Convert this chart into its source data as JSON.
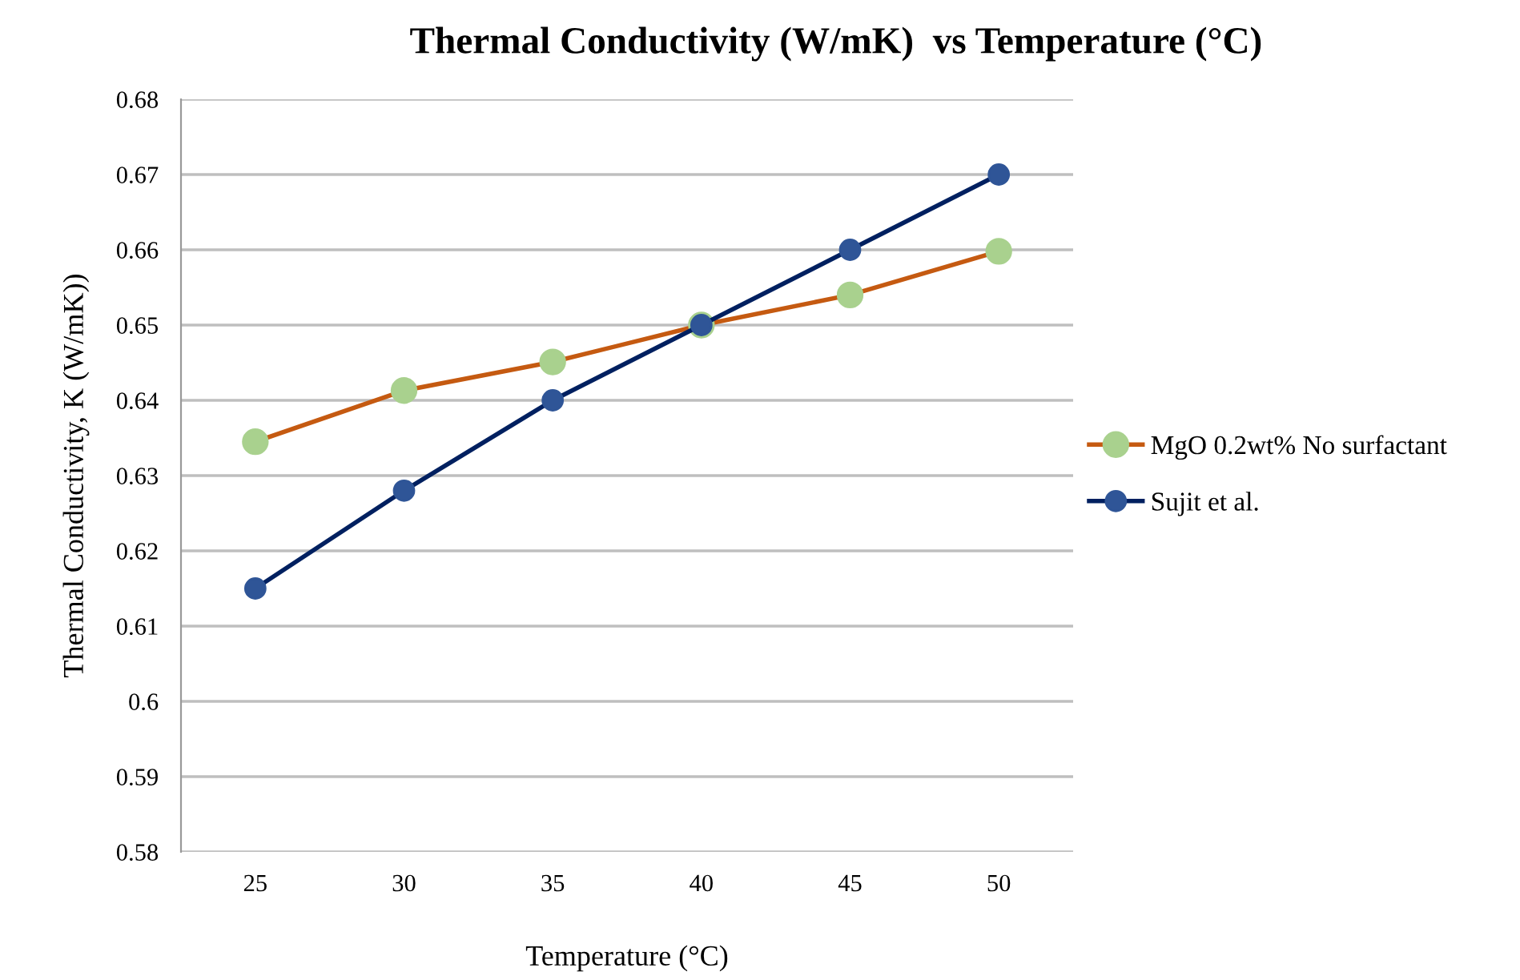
{
  "chart_data": {
    "type": "line",
    "title": "Thermal Conductivity (W/mK)  vs Temperature (°C)",
    "xlabel": "Temperature (°C)",
    "ylabel": "Thermal Conductivity, K (W/mK))",
    "categories": [
      "25",
      "30",
      "35",
      "40",
      "45",
      "50"
    ],
    "series": [
      {
        "name": "MgO 0.2wt% No surfactant",
        "color": "#c55a11",
        "values": [
          0.6345,
          0.6413,
          0.6451,
          0.65,
          0.654,
          0.6598
        ]
      },
      {
        "name": "Sujit et al.",
        "color": "#002060",
        "values": [
          0.615,
          0.628,
          0.64,
          0.65,
          0.66,
          0.67
        ]
      }
    ],
    "ylim": [
      0.58,
      0.68
    ],
    "yticks": [
      0.58,
      0.59,
      0.6,
      0.61,
      0.62,
      0.63,
      0.64,
      0.65,
      0.66,
      0.67,
      0.68
    ],
    "grid": "y",
    "legend": "right",
    "marker": "circle",
    "line_style": "solid"
  }
}
